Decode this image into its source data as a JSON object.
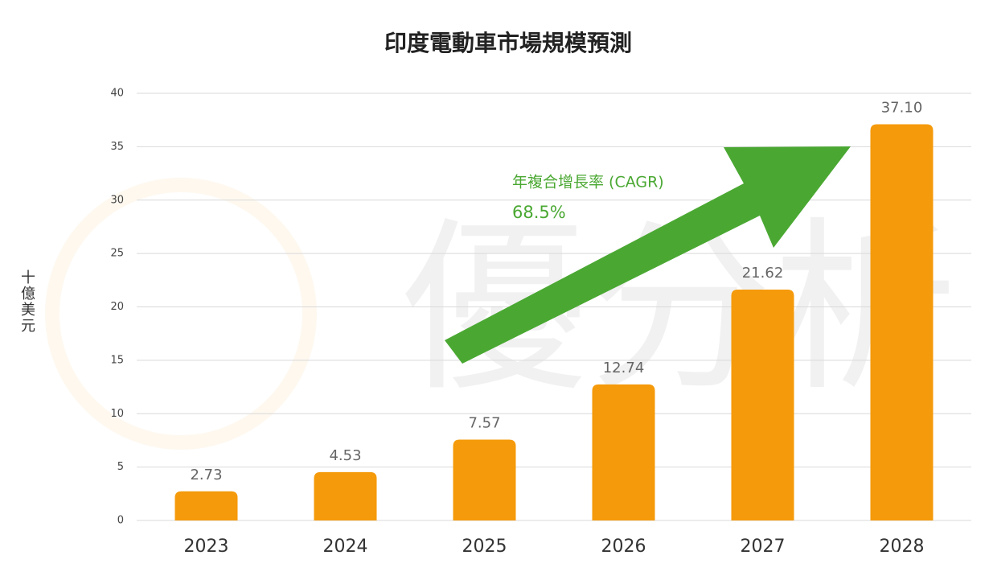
{
  "watermark": "優分析",
  "chart_data": {
    "type": "bar",
    "title": "印度電動車市場規模預測",
    "y_label": "十億美元",
    "categories": [
      "2023",
      "2024",
      "2025",
      "2026",
      "2027",
      "2028"
    ],
    "values": [
      2.73,
      4.53,
      7.57,
      12.74,
      21.62,
      37.1
    ],
    "value_labels": [
      "2.73",
      "4.53",
      "7.57",
      "12.74",
      "21.62",
      "37.10"
    ],
    "color": "#f59a0a",
    "ylim": [
      0,
      40
    ],
    "yticks": [
      0,
      5,
      10,
      15,
      20,
      25,
      30,
      35,
      40
    ],
    "grid": true,
    "annotations": [
      "年複合增長率 (CAGR)",
      "68.5%"
    ]
  }
}
